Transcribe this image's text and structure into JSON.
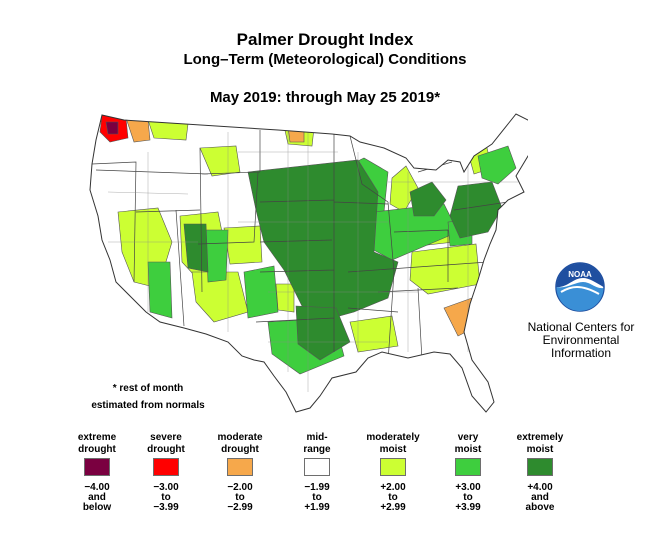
{
  "title": "Palmer Drought Index",
  "subtitle": "Long–Term (Meteorological) Conditions",
  "period": "May 2019: through May 25 2019*",
  "footnote": [
    "* rest of month",
    "estimated from normals"
  ],
  "source": {
    "logo_text": "NOAA",
    "lines": [
      "National Centers for",
      "Environmental",
      "Information"
    ]
  },
  "legend": [
    {
      "label": [
        "extreme",
        "drought"
      ],
      "range": [
        "−4.00",
        "and",
        "below"
      ],
      "color": "#7a0040"
    },
    {
      "label": [
        "severe",
        "drought"
      ],
      "range": [
        "−3.00",
        "to",
        "−3.99"
      ],
      "color": "#ff0000"
    },
    {
      "label": [
        "moderate",
        "drought"
      ],
      "range": [
        "−2.00",
        "to",
        "−2.99"
      ],
      "color": "#f6a84b"
    },
    {
      "label": [
        "mid-",
        "range"
      ],
      "range": [
        "−1.99",
        "to",
        "+1.99"
      ],
      "color": "#ffffff"
    },
    {
      "label": [
        "moderately",
        "moist"
      ],
      "range": [
        "+2.00",
        "to",
        "+2.99"
      ],
      "color": "#ccff33"
    },
    {
      "label": [
        "very",
        "moist"
      ],
      "range": [
        "+3.00",
        "to",
        "+3.99"
      ],
      "color": "#3ece3e"
    },
    {
      "label": [
        "extremely",
        "moist"
      ],
      "range": [
        "+4.00",
        "and",
        "above"
      ],
      "color": "#2e8b2e"
    }
  ]
}
